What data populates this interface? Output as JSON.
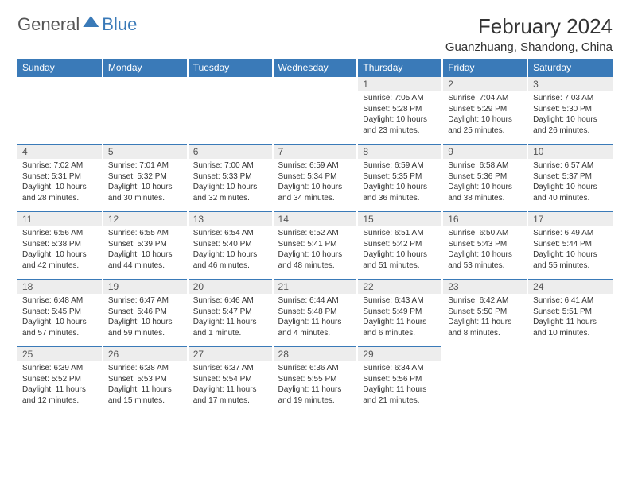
{
  "logo": {
    "word1": "General",
    "word2": "Blue"
  },
  "title": "February 2024",
  "location": "Guanzhuang, Shandong, China",
  "colors": {
    "accent": "#3a7ab8",
    "header_text": "#ffffff",
    "daynum_bg": "#ededed",
    "text": "#343434",
    "logo_gray": "#555555"
  },
  "typography": {
    "title_fontsize": 26,
    "location_fontsize": 15,
    "dow_fontsize": 12,
    "daynum_fontsize": 12,
    "detail_fontsize": 10
  },
  "days_of_week": [
    "Sunday",
    "Monday",
    "Tuesday",
    "Wednesday",
    "Thursday",
    "Friday",
    "Saturday"
  ],
  "weeks": [
    [
      null,
      null,
      null,
      null,
      {
        "n": "1",
        "sr": "Sunrise: 7:05 AM",
        "ss": "Sunset: 5:28 PM",
        "dl": "Daylight: 10 hours and 23 minutes."
      },
      {
        "n": "2",
        "sr": "Sunrise: 7:04 AM",
        "ss": "Sunset: 5:29 PM",
        "dl": "Daylight: 10 hours and 25 minutes."
      },
      {
        "n": "3",
        "sr": "Sunrise: 7:03 AM",
        "ss": "Sunset: 5:30 PM",
        "dl": "Daylight: 10 hours and 26 minutes."
      }
    ],
    [
      {
        "n": "4",
        "sr": "Sunrise: 7:02 AM",
        "ss": "Sunset: 5:31 PM",
        "dl": "Daylight: 10 hours and 28 minutes."
      },
      {
        "n": "5",
        "sr": "Sunrise: 7:01 AM",
        "ss": "Sunset: 5:32 PM",
        "dl": "Daylight: 10 hours and 30 minutes."
      },
      {
        "n": "6",
        "sr": "Sunrise: 7:00 AM",
        "ss": "Sunset: 5:33 PM",
        "dl": "Daylight: 10 hours and 32 minutes."
      },
      {
        "n": "7",
        "sr": "Sunrise: 6:59 AM",
        "ss": "Sunset: 5:34 PM",
        "dl": "Daylight: 10 hours and 34 minutes."
      },
      {
        "n": "8",
        "sr": "Sunrise: 6:59 AM",
        "ss": "Sunset: 5:35 PM",
        "dl": "Daylight: 10 hours and 36 minutes."
      },
      {
        "n": "9",
        "sr": "Sunrise: 6:58 AM",
        "ss": "Sunset: 5:36 PM",
        "dl": "Daylight: 10 hours and 38 minutes."
      },
      {
        "n": "10",
        "sr": "Sunrise: 6:57 AM",
        "ss": "Sunset: 5:37 PM",
        "dl": "Daylight: 10 hours and 40 minutes."
      }
    ],
    [
      {
        "n": "11",
        "sr": "Sunrise: 6:56 AM",
        "ss": "Sunset: 5:38 PM",
        "dl": "Daylight: 10 hours and 42 minutes."
      },
      {
        "n": "12",
        "sr": "Sunrise: 6:55 AM",
        "ss": "Sunset: 5:39 PM",
        "dl": "Daylight: 10 hours and 44 minutes."
      },
      {
        "n": "13",
        "sr": "Sunrise: 6:54 AM",
        "ss": "Sunset: 5:40 PM",
        "dl": "Daylight: 10 hours and 46 minutes."
      },
      {
        "n": "14",
        "sr": "Sunrise: 6:52 AM",
        "ss": "Sunset: 5:41 PM",
        "dl": "Daylight: 10 hours and 48 minutes."
      },
      {
        "n": "15",
        "sr": "Sunrise: 6:51 AM",
        "ss": "Sunset: 5:42 PM",
        "dl": "Daylight: 10 hours and 51 minutes."
      },
      {
        "n": "16",
        "sr": "Sunrise: 6:50 AM",
        "ss": "Sunset: 5:43 PM",
        "dl": "Daylight: 10 hours and 53 minutes."
      },
      {
        "n": "17",
        "sr": "Sunrise: 6:49 AM",
        "ss": "Sunset: 5:44 PM",
        "dl": "Daylight: 10 hours and 55 minutes."
      }
    ],
    [
      {
        "n": "18",
        "sr": "Sunrise: 6:48 AM",
        "ss": "Sunset: 5:45 PM",
        "dl": "Daylight: 10 hours and 57 minutes."
      },
      {
        "n": "19",
        "sr": "Sunrise: 6:47 AM",
        "ss": "Sunset: 5:46 PM",
        "dl": "Daylight: 10 hours and 59 minutes."
      },
      {
        "n": "20",
        "sr": "Sunrise: 6:46 AM",
        "ss": "Sunset: 5:47 PM",
        "dl": "Daylight: 11 hours and 1 minute."
      },
      {
        "n": "21",
        "sr": "Sunrise: 6:44 AM",
        "ss": "Sunset: 5:48 PM",
        "dl": "Daylight: 11 hours and 4 minutes."
      },
      {
        "n": "22",
        "sr": "Sunrise: 6:43 AM",
        "ss": "Sunset: 5:49 PM",
        "dl": "Daylight: 11 hours and 6 minutes."
      },
      {
        "n": "23",
        "sr": "Sunrise: 6:42 AM",
        "ss": "Sunset: 5:50 PM",
        "dl": "Daylight: 11 hours and 8 minutes."
      },
      {
        "n": "24",
        "sr": "Sunrise: 6:41 AM",
        "ss": "Sunset: 5:51 PM",
        "dl": "Daylight: 11 hours and 10 minutes."
      }
    ],
    [
      {
        "n": "25",
        "sr": "Sunrise: 6:39 AM",
        "ss": "Sunset: 5:52 PM",
        "dl": "Daylight: 11 hours and 12 minutes."
      },
      {
        "n": "26",
        "sr": "Sunrise: 6:38 AM",
        "ss": "Sunset: 5:53 PM",
        "dl": "Daylight: 11 hours and 15 minutes."
      },
      {
        "n": "27",
        "sr": "Sunrise: 6:37 AM",
        "ss": "Sunset: 5:54 PM",
        "dl": "Daylight: 11 hours and 17 minutes."
      },
      {
        "n": "28",
        "sr": "Sunrise: 6:36 AM",
        "ss": "Sunset: 5:55 PM",
        "dl": "Daylight: 11 hours and 19 minutes."
      },
      {
        "n": "29",
        "sr": "Sunrise: 6:34 AM",
        "ss": "Sunset: 5:56 PM",
        "dl": "Daylight: 11 hours and 21 minutes."
      },
      null,
      null
    ]
  ]
}
